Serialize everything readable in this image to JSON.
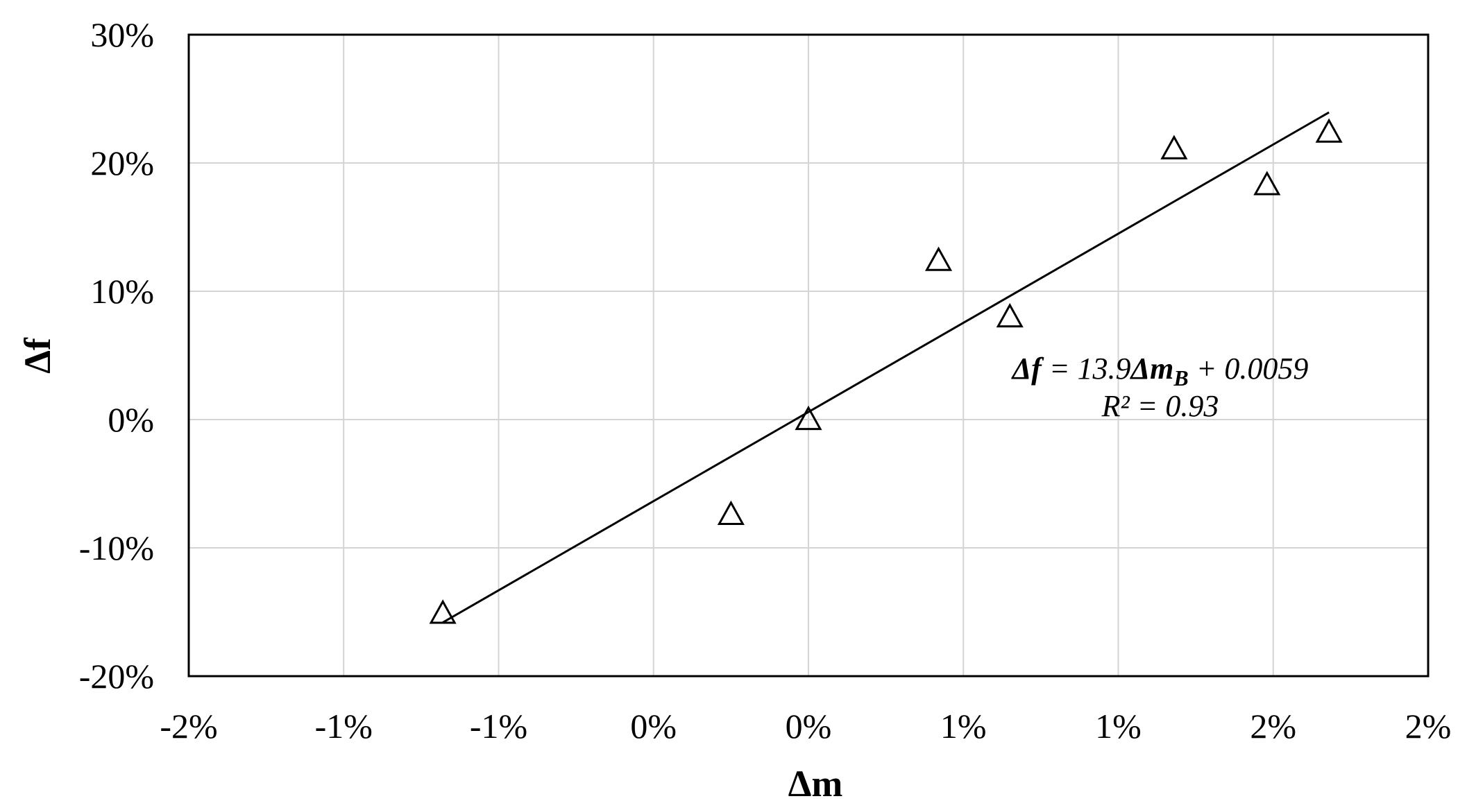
{
  "chart_data": {
    "type": "scatter",
    "xlabel": "Δm",
    "ylabel": "Δf",
    "xlim": [
      -0.02,
      0.02
    ],
    "ylim": [
      -0.2,
      0.3
    ],
    "x_ticks": [
      -0.02,
      -0.015,
      -0.01,
      -0.005,
      0.0,
      0.005,
      0.01,
      0.015,
      0.02
    ],
    "x_tick_labels": [
      "-2%",
      "-1%",
      "-1%",
      "0%",
      "0%",
      "1%",
      "1%",
      "2%",
      "2%"
    ],
    "y_ticks": [
      -0.2,
      -0.1,
      0.0,
      0.1,
      0.2,
      0.3
    ],
    "y_tick_labels": [
      "-20%",
      "-10%",
      "0%",
      "10%",
      "20%",
      "30%"
    ],
    "grid": true,
    "marker": "triangle-open",
    "points": [
      {
        "x": -0.0118,
        "y": -0.151
      },
      {
        "x": -0.0025,
        "y": -0.074
      },
      {
        "x": 0.0,
        "y": 0.0
      },
      {
        "x": 0.0042,
        "y": 0.124
      },
      {
        "x": 0.0065,
        "y": 0.08
      },
      {
        "x": 0.0118,
        "y": 0.211
      },
      {
        "x": 0.0148,
        "y": 0.183
      },
      {
        "x": 0.0168,
        "y": 0.224
      }
    ],
    "trendline": {
      "slope": 13.9,
      "intercept": 0.0059,
      "x_range": [
        -0.0118,
        0.0168
      ],
      "label_parts": {
        "lhs": "Δf",
        "eq": " = 13.9",
        "dm": "Δm",
        "sub": "B",
        "rest": " + 0.0059"
      },
      "r2_label": "R² = 0.93"
    }
  }
}
